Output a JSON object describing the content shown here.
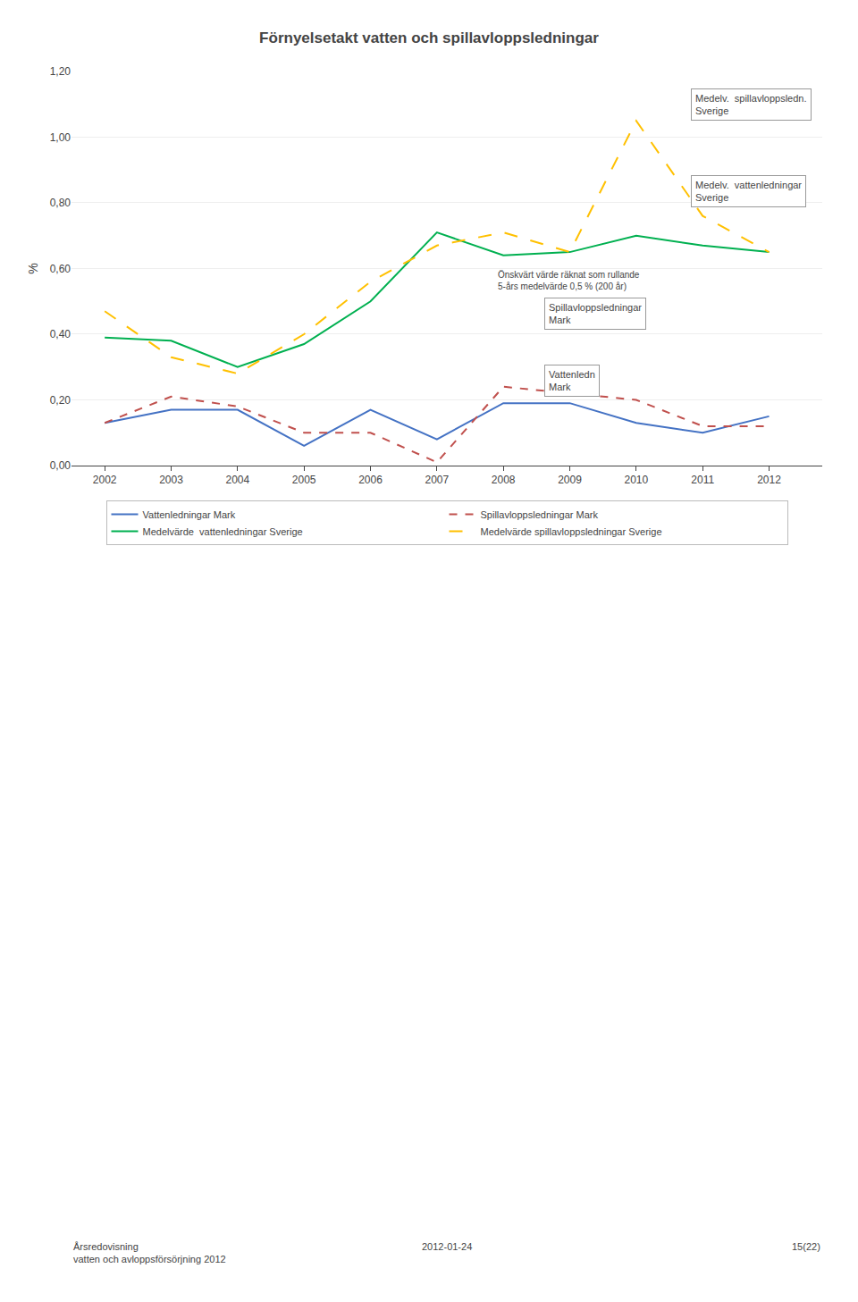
{
  "chart_data": {
    "type": "line",
    "title": "Förnyelsetakt vatten och spillavloppsledningar",
    "ylabel": "%",
    "x": [
      2002,
      2003,
      2004,
      2005,
      2006,
      2007,
      2008,
      2009,
      2010,
      2011,
      2012
    ],
    "series": [
      {
        "name": "Vattenledningar Mark",
        "color": "#4472C4",
        "line_style": "solid",
        "values": [
          0.13,
          0.17,
          0.17,
          0.06,
          0.17,
          0.08,
          0.19,
          0.19,
          0.13,
          0.1,
          0.15
        ]
      },
      {
        "name": "Spillavloppsledningar Mark",
        "color": "#C0504D",
        "line_style": "dashed",
        "values": [
          0.13,
          0.21,
          0.18,
          0.1,
          0.1,
          0.01,
          0.24,
          0.22,
          0.2,
          0.12,
          0.12
        ]
      },
      {
        "name": "Medelvärde  vattenledningar Sverige",
        "color": "#00B050",
        "line_style": "solid",
        "values": [
          0.39,
          0.38,
          0.3,
          0.37,
          0.5,
          0.71,
          0.64,
          0.65,
          0.7,
          0.67,
          0.65
        ]
      },
      {
        "name": "Medelvärde spillavloppsledningar Sverige",
        "color": "#FFC000",
        "line_style": "long_dashed",
        "values": [
          0.47,
          0.33,
          0.28,
          0.4,
          0.56,
          0.67,
          0.71,
          0.65,
          1.05,
          0.76,
          0.65
        ]
      }
    ],
    "xlim": [
      2001.5,
      2012.8
    ],
    "xticks": [
      2002,
      2003,
      2004,
      2005,
      2006,
      2007,
      2008,
      2009,
      2010,
      2011,
      2012
    ],
    "ylim": [
      0.0,
      1.2
    ],
    "yticks": [
      {
        "value": 0.0,
        "label": "0,00"
      },
      {
        "value": 0.2,
        "label": "0,20"
      },
      {
        "value": 0.4,
        "label": "0,40"
      },
      {
        "value": 0.6,
        "label": "0,60"
      },
      {
        "value": 0.8,
        "label": "0,80"
      },
      {
        "value": 1.0,
        "label": "1,00"
      },
      {
        "value": 1.2,
        "label": "1,20"
      }
    ],
    "grid": "y",
    "legend": "bottom",
    "annotations": [
      "Medelv.  spillavloppsledn.\nSverige",
      "Medelv.  vattenledningar\nSverige",
      "Önskvärt värde räknat som rullande\n5-års medelvärde 0,5 % (200 år)",
      "Spillavloppsledningar\nMark",
      "Vattenledn\nMark"
    ],
    "footer": [
      "Årsredovisning\nvatten och avloppsförsörjning 2012",
      "2012-01-24",
      "15(22)"
    ]
  }
}
